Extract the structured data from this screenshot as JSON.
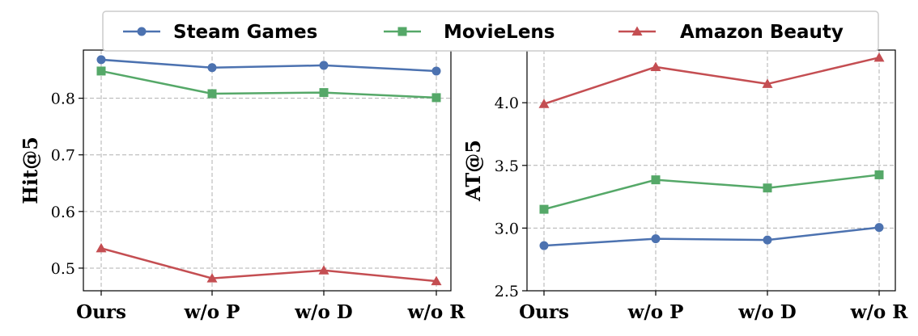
{
  "chart_data": [
    {
      "type": "line",
      "categories": [
        "Ours",
        "w/o P",
        "w/o D",
        "w/o R"
      ],
      "ylabel": "Hit@5",
      "ylim": [
        0.46,
        0.885
      ],
      "yticks": [
        0.5,
        0.6,
        0.7,
        0.8
      ],
      "ytick_labels": [
        "0.5",
        "0.6",
        "0.7",
        "0.8"
      ],
      "grid": true,
      "series": [
        {
          "name": "Steam Games",
          "color": "#4c72b0",
          "marker": "circle",
          "values": [
            0.868,
            0.854,
            0.858,
            0.848
          ]
        },
        {
          "name": "MovieLens",
          "color": "#55a868",
          "marker": "square",
          "values": [
            0.848,
            0.808,
            0.81,
            0.801
          ]
        },
        {
          "name": "Amazon Beauty",
          "color": "#c44e52",
          "marker": "triangle",
          "values": [
            0.535,
            0.482,
            0.496,
            0.477
          ]
        }
      ]
    },
    {
      "type": "line",
      "categories": [
        "Ours",
        "w/o P",
        "w/o D",
        "w/o R"
      ],
      "ylabel": "AT@5",
      "ylim": [
        2.5,
        4.42
      ],
      "yticks": [
        2.5,
        3.0,
        3.5,
        4.0
      ],
      "ytick_labels": [
        "2.5",
        "3.0",
        "3.5",
        "4.0"
      ],
      "grid": true,
      "series": [
        {
          "name": "Steam Games",
          "color": "#4c72b0",
          "marker": "circle",
          "values": [
            2.86,
            2.915,
            2.905,
            3.005
          ]
        },
        {
          "name": "MovieLens",
          "color": "#55a868",
          "marker": "square",
          "values": [
            3.15,
            3.385,
            3.32,
            3.425
          ]
        },
        {
          "name": "Amazon Beauty",
          "color": "#c44e52",
          "marker": "triangle",
          "values": [
            3.99,
            4.285,
            4.15,
            4.36
          ]
        }
      ]
    }
  ],
  "legend": {
    "position": "top-center",
    "entries": [
      {
        "label": "Steam Games",
        "color": "#4c72b0",
        "marker": "circle"
      },
      {
        "label": "MovieLens",
        "color": "#55a868",
        "marker": "square"
      },
      {
        "label": "Amazon Beauty",
        "color": "#c44e52",
        "marker": "triangle"
      }
    ]
  }
}
